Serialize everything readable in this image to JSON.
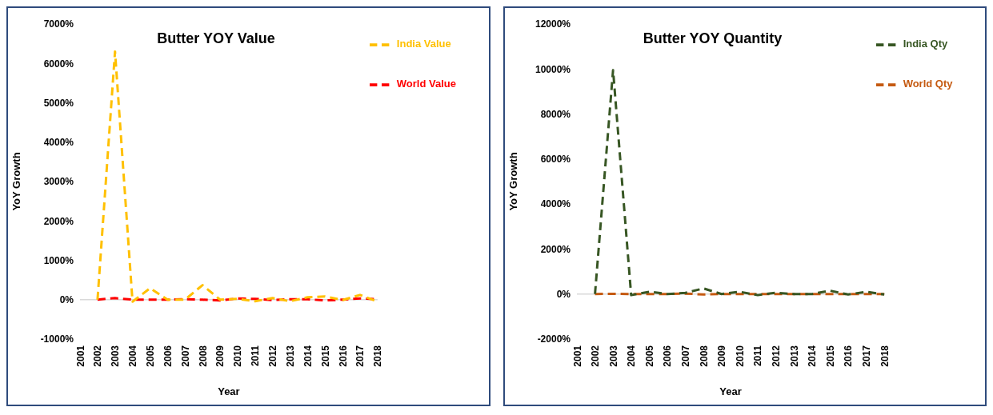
{
  "chart_data": [
    {
      "type": "line",
      "title": "Butter YOY Value",
      "xlabel": "Year",
      "ylabel": "YoY Growth",
      "categories": [
        "2001",
        "2002",
        "2003",
        "2004",
        "2005",
        "2006",
        "2007",
        "2008",
        "2009",
        "2010",
        "2011",
        "2012",
        "2013",
        "2014",
        "2015",
        "2016",
        "2017",
        "2018"
      ],
      "series": [
        {
          "name": "World Value",
          "color": "#ff0000",
          "line_style": "dashed",
          "values": [
            null,
            0,
            40,
            0,
            0,
            0,
            10,
            0,
            -20,
            30,
            20,
            -10,
            10,
            10,
            -20,
            0,
            30,
            10
          ]
        },
        {
          "name": "India Value",
          "color": "#ffc000",
          "line_style": "dashed",
          "values": [
            null,
            0,
            6300,
            -50,
            290,
            0,
            0,
            370,
            0,
            20,
            -40,
            40,
            -40,
            60,
            80,
            -10,
            120,
            -50
          ]
        }
      ],
      "ylim": [
        -1000,
        7000
      ],
      "yticks": [
        {
          "value": -1000,
          "label": "-1000%"
        },
        {
          "value": 0,
          "label": "0%"
        },
        {
          "value": 1000,
          "label": "1000%"
        },
        {
          "value": 2000,
          "label": "2000%"
        },
        {
          "value": 3000,
          "label": "3000%"
        },
        {
          "value": 4000,
          "label": "4000%"
        },
        {
          "value": 5000,
          "label": "5000%"
        },
        {
          "value": 6000,
          "label": "6000%"
        },
        {
          "value": 7000,
          "label": "7000%"
        }
      ],
      "ref_lines": [
        {
          "axis": "y",
          "value": 0,
          "color": "#d9d9d9"
        }
      ],
      "grid": false,
      "legend": "top right",
      "marker": "none"
    },
    {
      "type": "line",
      "title": "Butter YOY Quantity",
      "xlabel": "Year",
      "ylabel": "YoY Growth",
      "categories": [
        "2001",
        "2002",
        "2003",
        "2004",
        "2005",
        "2006",
        "2007",
        "2008",
        "2009",
        "2010",
        "2011",
        "2012",
        "2013",
        "2014",
        "2015",
        "2016",
        "2017",
        "2018"
      ],
      "series": [
        {
          "name": "World Qty",
          "color": "#c55a11",
          "line_style": "dashed",
          "values": [
            null,
            0,
            10,
            0,
            0,
            0,
            20,
            -20,
            0,
            0,
            0,
            0,
            0,
            0,
            0,
            0,
            0,
            0
          ]
        },
        {
          "name": "India Qty",
          "color": "#375623",
          "line_style": "dashed",
          "values": [
            null,
            0,
            9950,
            -50,
            100,
            0,
            50,
            250,
            0,
            100,
            -50,
            60,
            0,
            0,
            150,
            -20,
            100,
            -20
          ]
        }
      ],
      "ylim": [
        -2000,
        12000
      ],
      "yticks": [
        {
          "value": -2000,
          "label": "-2000%"
        },
        {
          "value": 0,
          "label": "0%"
        },
        {
          "value": 2000,
          "label": "2000%"
        },
        {
          "value": 4000,
          "label": "4000%"
        },
        {
          "value": 6000,
          "label": "6000%"
        },
        {
          "value": 8000,
          "label": "8000%"
        },
        {
          "value": 10000,
          "label": "10000%"
        },
        {
          "value": 12000,
          "label": "12000%"
        }
      ],
      "ref_lines": [
        {
          "axis": "y",
          "value": 0,
          "color": "#d9d9d9"
        }
      ],
      "grid": false,
      "legend": "top right",
      "marker": "none"
    }
  ]
}
